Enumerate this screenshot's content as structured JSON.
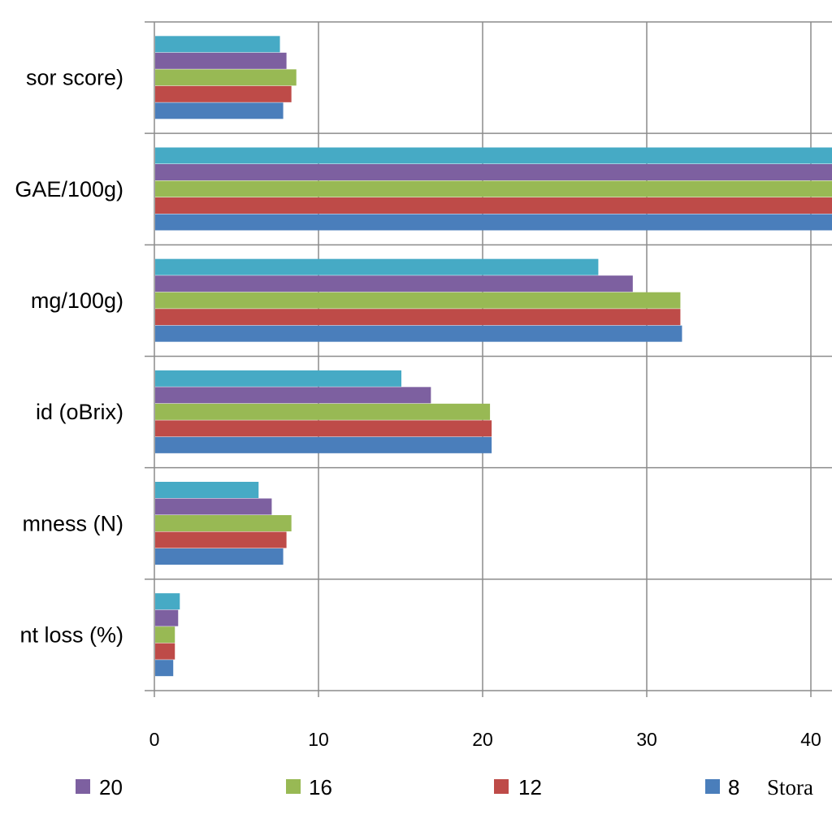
{
  "chart_data": {
    "type": "bar",
    "orientation": "horizontal",
    "categories": [
      "sor score)",
      "GAE/100g)",
      "mg/100g)",
      "id  (oBrix)",
      "mness (N)",
      "nt loss (%)"
    ],
    "series": [
      {
        "name": "8",
        "color": "#4A7EBB",
        "values": [
          7.8,
          41.5,
          32.1,
          20.5,
          7.8,
          1.1
        ]
      },
      {
        "name": "12",
        "color": "#BE4B48",
        "values": [
          8.3,
          41.5,
          32.0,
          20.5,
          8.0,
          1.2
        ]
      },
      {
        "name": "16",
        "color": "#98B954",
        "values": [
          8.6,
          41.5,
          32.0,
          20.4,
          8.3,
          1.2
        ]
      },
      {
        "name": "20",
        "color": "#7D60A0",
        "values": [
          8.0,
          41.5,
          29.1,
          16.8,
          7.1,
          1.4
        ]
      },
      {
        "name": "",
        "color": "#46AAC5",
        "values": [
          7.6,
          41.5,
          27.0,
          15.0,
          6.3,
          1.5
        ]
      }
    ],
    "xticks": [
      0,
      10,
      20,
      30,
      40
    ],
    "xlim": [
      0,
      41.5
    ],
    "grid": true,
    "legend": {
      "placement": "bottom",
      "entries": [
        "20",
        "16",
        "12",
        "8"
      ],
      "title": "Stora"
    }
  }
}
